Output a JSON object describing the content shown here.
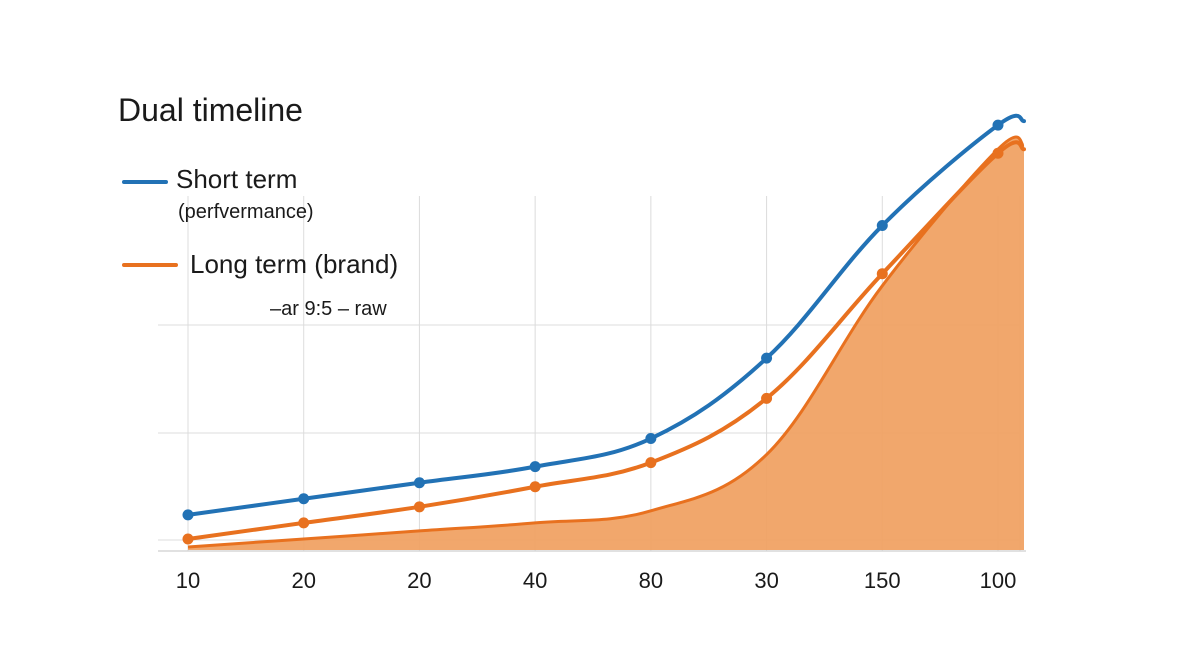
{
  "chart_data": {
    "type": "line",
    "title": "Dual timeline",
    "annotation": "–ar 9:5 – raw",
    "categories": [
      "10",
      "20",
      "20",
      "40",
      "80",
      "30",
      "150",
      "100"
    ],
    "series": [
      {
        "name": "Short term",
        "name_sub": "(perfvermance)",
        "color": "#2272b5",
        "values": [
          8,
          12,
          16,
          20,
          27,
          47,
          80,
          105
        ]
      },
      {
        "name": "Long term (brand)",
        "color": "#e8711f",
        "values": [
          2,
          6,
          10,
          15,
          21,
          37,
          68,
          98
        ]
      }
    ],
    "area": {
      "color": "#f0a060",
      "values": [
        0,
        2,
        4,
        6,
        9,
        23,
        65,
        99
      ]
    },
    "ylim": [
      0,
      110
    ],
    "grid": true,
    "legend_position": "top-left",
    "xlabel": "",
    "ylabel": ""
  }
}
